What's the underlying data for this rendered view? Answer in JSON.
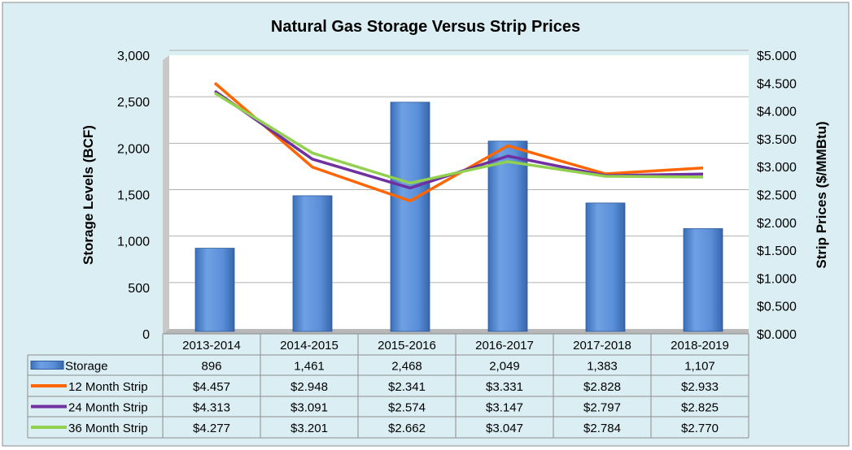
{
  "chart_data": {
    "type": "bar+line",
    "title": "Natural Gas Storage Versus Strip Prices",
    "ylabel": "Storage Levels (BCF)",
    "y2label": "Strip Prices ($/MMBtu)",
    "ylim": [
      0,
      3000
    ],
    "y2lim": [
      0,
      5
    ],
    "yticks": [
      "0",
      "500",
      "1,000",
      "1,500",
      "2,000",
      "2,500",
      "3,000"
    ],
    "y2ticks": [
      "$0.000",
      "$0.500",
      "$1.000",
      "$1.500",
      "$2.000",
      "$2.500",
      "$3.000",
      "$3.500",
      "$4.000",
      "$4.500",
      "$5.000"
    ],
    "grid": true,
    "legend": "data-table",
    "categories": [
      "2013-2014",
      "2014-2015",
      "2015-2016",
      "2016-2017",
      "2017-2018",
      "2018-2019"
    ],
    "series": [
      {
        "name": "Storage",
        "kind": "bar",
        "axis": "left",
        "color": "#5b8fd6",
        "values": [
          896,
          1461,
          2468,
          2049,
          1383,
          1107
        ],
        "labels": [
          "896",
          "1,461",
          "2,468",
          "2,049",
          "1,383",
          "1,107"
        ]
      },
      {
        "name": "12 Month Strip",
        "kind": "line",
        "axis": "right",
        "color": "#ff6600",
        "values": [
          4.457,
          2.948,
          2.341,
          3.331,
          2.828,
          2.933
        ],
        "labels": [
          "$4.457",
          "$2.948",
          "$2.341",
          "$3.331",
          "$2.828",
          "$2.933"
        ]
      },
      {
        "name": "24 Month Strip",
        "kind": "line",
        "axis": "right",
        "color": "#7030a0",
        "values": [
          4.313,
          3.091,
          2.574,
          3.147,
          2.797,
          2.825
        ],
        "labels": [
          "$4.313",
          "$3.091",
          "$2.574",
          "$3.147",
          "$2.797",
          "$2.825"
        ]
      },
      {
        "name": "36 Month Strip",
        "kind": "line",
        "axis": "right",
        "color": "#92d050",
        "values": [
          4.277,
          3.201,
          2.662,
          3.047,
          2.784,
          2.77
        ],
        "labels": [
          "$4.277",
          "$3.201",
          "$2.662",
          "$3.047",
          "$2.784",
          "$2.770"
        ]
      }
    ]
  }
}
